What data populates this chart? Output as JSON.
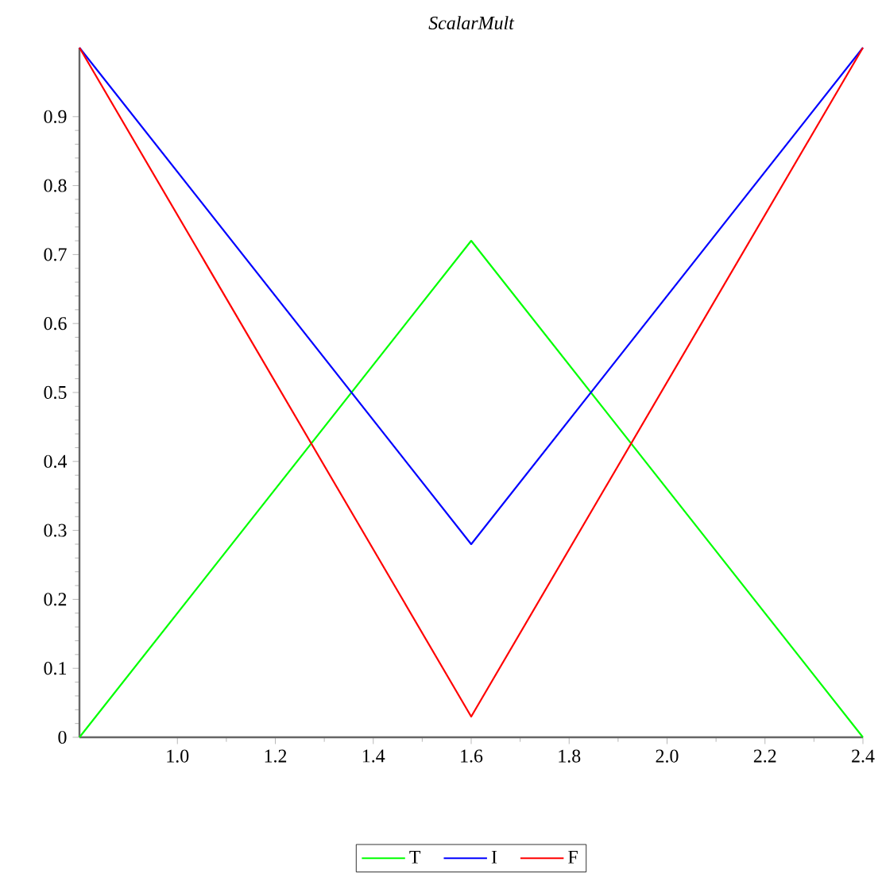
{
  "chart_data": {
    "type": "line",
    "title": "ScalarMult",
    "x": [
      0.8,
      1.6,
      2.4
    ],
    "series": [
      {
        "name": "T",
        "color": "#00ff00",
        "values": [
          0,
          0.72,
          0
        ]
      },
      {
        "name": "I",
        "color": "#0000ff",
        "values": [
          1,
          0.28,
          1
        ]
      },
      {
        "name": "F",
        "color": "#ff0000",
        "values": [
          1,
          0.03,
          1
        ]
      }
    ],
    "xlim": [
      0.8,
      2.4
    ],
    "ylim": [
      0,
      1
    ],
    "xticks": [
      {
        "value": 1,
        "label": "1.0"
      },
      1.2,
      1.4,
      1.6,
      1.8,
      {
        "value": 2,
        "label": "2.0"
      },
      2.2,
      2.4
    ],
    "yticks": [
      0,
      0.1,
      0.2,
      0.3,
      0.4,
      0.5,
      0.6,
      0.7,
      0.8,
      0.9
    ],
    "legend": "bottom",
    "grid": false,
    "marker": "none",
    "line_style": "solid"
  }
}
